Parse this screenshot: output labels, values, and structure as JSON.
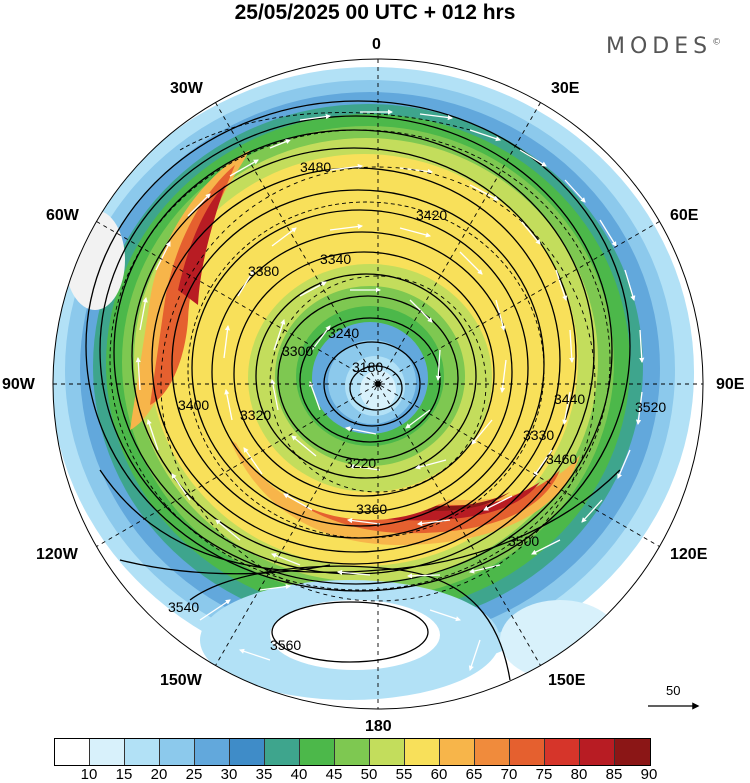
{
  "title": "25/05/2025  00 UTC  + 012 hrs",
  "brand": "MODES",
  "brand_mark": "©",
  "longitude_labels": {
    "lon_0": "0",
    "lon_30e": "30E",
    "lon_60e": "60E",
    "lon_90e": "90E",
    "lon_120e": "120E",
    "lon_150e": "150E",
    "lon_180": "180",
    "lon_150w": "150W",
    "lon_120w": "120W",
    "lon_90w": "90W",
    "lon_60w": "60W",
    "lon_30w": "30W"
  },
  "contour_labels": [
    "3180",
    "3220",
    "3240",
    "3300",
    "3320",
    "3330",
    "3340",
    "3360",
    "3380",
    "3400",
    "3420",
    "3440",
    "3460",
    "3480",
    "3500",
    "3520",
    "3540",
    "3560"
  ],
  "colorbar": {
    "colors": [
      "#ffffff",
      "#d8f1fb",
      "#b2e1f6",
      "#8cc9ec",
      "#62a8dc",
      "#3f8cc8",
      "#3ea58d",
      "#4cb84a",
      "#7ec851",
      "#c3dd5c",
      "#f8e05a",
      "#f7b54a",
      "#f08b3c",
      "#e5602f",
      "#d6352a",
      "#b81c23",
      "#8b1616"
    ],
    "ticks": [
      "10",
      "15",
      "20",
      "25",
      "30",
      "35",
      "40",
      "45",
      "50",
      "55",
      "60",
      "65",
      "70",
      "75",
      "80",
      "85",
      "90"
    ]
  },
  "reference_vector": {
    "label": "50"
  }
}
